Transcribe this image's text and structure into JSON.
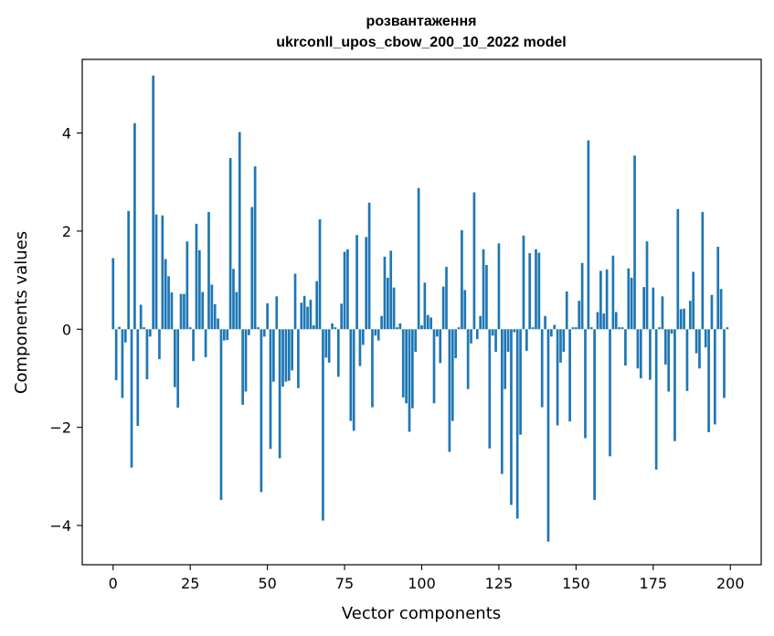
{
  "chart_data": {
    "type": "bar",
    "title_line1": "розвантаження",
    "title_line2": "ukrconll_upos_cbow_200_10_2022 model",
    "xlabel": "Vector components",
    "ylabel": "Components values",
    "xlim": [
      -10,
      210
    ],
    "ylim": [
      -4.8,
      5.5
    ],
    "xticks": [
      0,
      25,
      50,
      75,
      100,
      125,
      150,
      175,
      200
    ],
    "xtick_labels": [
      "0",
      "25",
      "50",
      "75",
      "100",
      "125",
      "150",
      "175",
      "200"
    ],
    "yticks": [
      -4,
      -2,
      0,
      2,
      4
    ],
    "ytick_labels": [
      "−4",
      "−2",
      "0",
      "2",
      "4"
    ],
    "bar_color": "#1f77b4",
    "values": [
      1.45,
      -1.04,
      0.05,
      -1.4,
      -0.27,
      2.41,
      -2.82,
      4.2,
      -1.97,
      0.5,
      0.04,
      -1.02,
      -0.15,
      5.17,
      2.34,
      -0.61,
      2.32,
      1.43,
      1.08,
      0.75,
      -1.18,
      -1.6,
      0.72,
      0.72,
      1.79,
      0.04,
      -0.65,
      2.15,
      1.61,
      0.76,
      -0.57,
      2.39,
      0.91,
      0.51,
      0.22,
      -3.48,
      -0.23,
      -0.22,
      3.49,
      1.23,
      0.76,
      4.02,
      -1.54,
      -1.27,
      -0.12,
      2.49,
      3.32,
      0.04,
      -3.32,
      -0.15,
      0.53,
      -2.44,
      -1.07,
      0.67,
      -2.63,
      -1.17,
      -1.07,
      -1.05,
      -0.84,
      1.13,
      -1.2,
      0.54,
      0.68,
      0.46,
      0.6,
      0.08,
      0.98,
      2.24,
      -3.9,
      -0.58,
      -0.68,
      0.12,
      0.04,
      -0.97,
      0.52,
      1.58,
      1.63,
      -1.87,
      -2.07,
      1.92,
      -0.75,
      -0.32,
      1.88,
      2.58,
      -1.59,
      -0.13,
      -0.23,
      0.27,
      1.48,
      1.05,
      1.6,
      0.85,
      0.04,
      0.12,
      -1.39,
      -1.51,
      -2.09,
      -1.61,
      -0.46,
      2.88,
      0.08,
      0.95,
      0.29,
      0.24,
      -1.51,
      -0.15,
      -0.69,
      0.87,
      1.27,
      -2.5,
      -1.87,
      -0.59,
      0.04,
      2.02,
      0.8,
      -1.22,
      -0.29,
      2.79,
      -0.2,
      0.27,
      1.63,
      1.31,
      -2.43,
      -0.13,
      -0.46,
      1.75,
      -2.95,
      -1.22,
      -0.46,
      -3.58,
      -0.06,
      -3.86,
      -2.15,
      1.91,
      -0.44,
      1.55,
      0.04,
      1.63,
      1.56,
      -1.59,
      0.27,
      -4.33,
      -0.15,
      0.09,
      -1.96,
      -0.68,
      -0.46,
      0.77,
      -1.88,
      0.04,
      0.04,
      0.58,
      1.35,
      -2.22,
      3.85,
      0.04,
      -3.48,
      0.35,
      1.19,
      0.32,
      1.22,
      -2.59,
      1.5,
      0.35,
      0.04,
      0.04,
      -0.74,
      1.24,
      1.05,
      3.54,
      -0.8,
      -1.0,
      0.86,
      1.79,
      -1.03,
      0.85,
      -2.86,
      0.04,
      0.67,
      -0.72,
      -1.27,
      -0.09,
      -2.28,
      2.45,
      0.41,
      0.42,
      -1.26,
      0.58,
      1.17,
      -0.49,
      -0.8,
      2.39,
      -0.37,
      -2.1,
      0.7,
      -1.94,
      1.68,
      0.82,
      -1.4,
      0.04
    ]
  }
}
